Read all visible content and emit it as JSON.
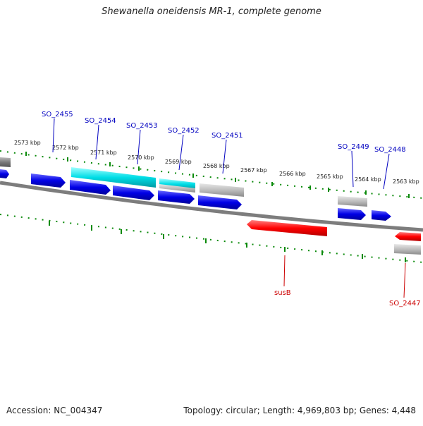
{
  "title": "Shewanella oneidensis MR-1, complete genome",
  "footer": {
    "accession": "Accession: NC_004347",
    "summary": "Topology: circular; Length: 4,969,803 bp; Genes: 4,448"
  },
  "colors": {
    "forward_cds": "#0000e0",
    "rrna": "#00d8e0",
    "other_feature": "#b0b0b0",
    "reverse_highlight": "#ff0000",
    "tick": "#0a8a0a",
    "backbone": "#808080",
    "label_blue": "#0000c0",
    "label_red": "#cc0000"
  },
  "kbp_ticks": [
    "2573 kbp",
    "2572 kbp",
    "2571 kbp",
    "2570 kbp",
    "2569 kbp",
    "2568 kbp",
    "2567 kbp",
    "2566 kbp",
    "2565 kbp",
    "2564 kbp",
    "2563 kbp"
  ],
  "gene_labels": [
    {
      "text": "SO_2455",
      "strand": "forward"
    },
    {
      "text": "SO_2454",
      "strand": "forward"
    },
    {
      "text": "SO_2453",
      "strand": "forward"
    },
    {
      "text": "SO_2452",
      "strand": "forward"
    },
    {
      "text": "SO_2451",
      "strand": "forward"
    },
    {
      "text": "SO_2449",
      "strand": "forward"
    },
    {
      "text": "SO_2448",
      "strand": "forward"
    },
    {
      "text": "susB",
      "strand": "reverse"
    },
    {
      "text": "SO_2447",
      "strand": "reverse"
    }
  ]
}
